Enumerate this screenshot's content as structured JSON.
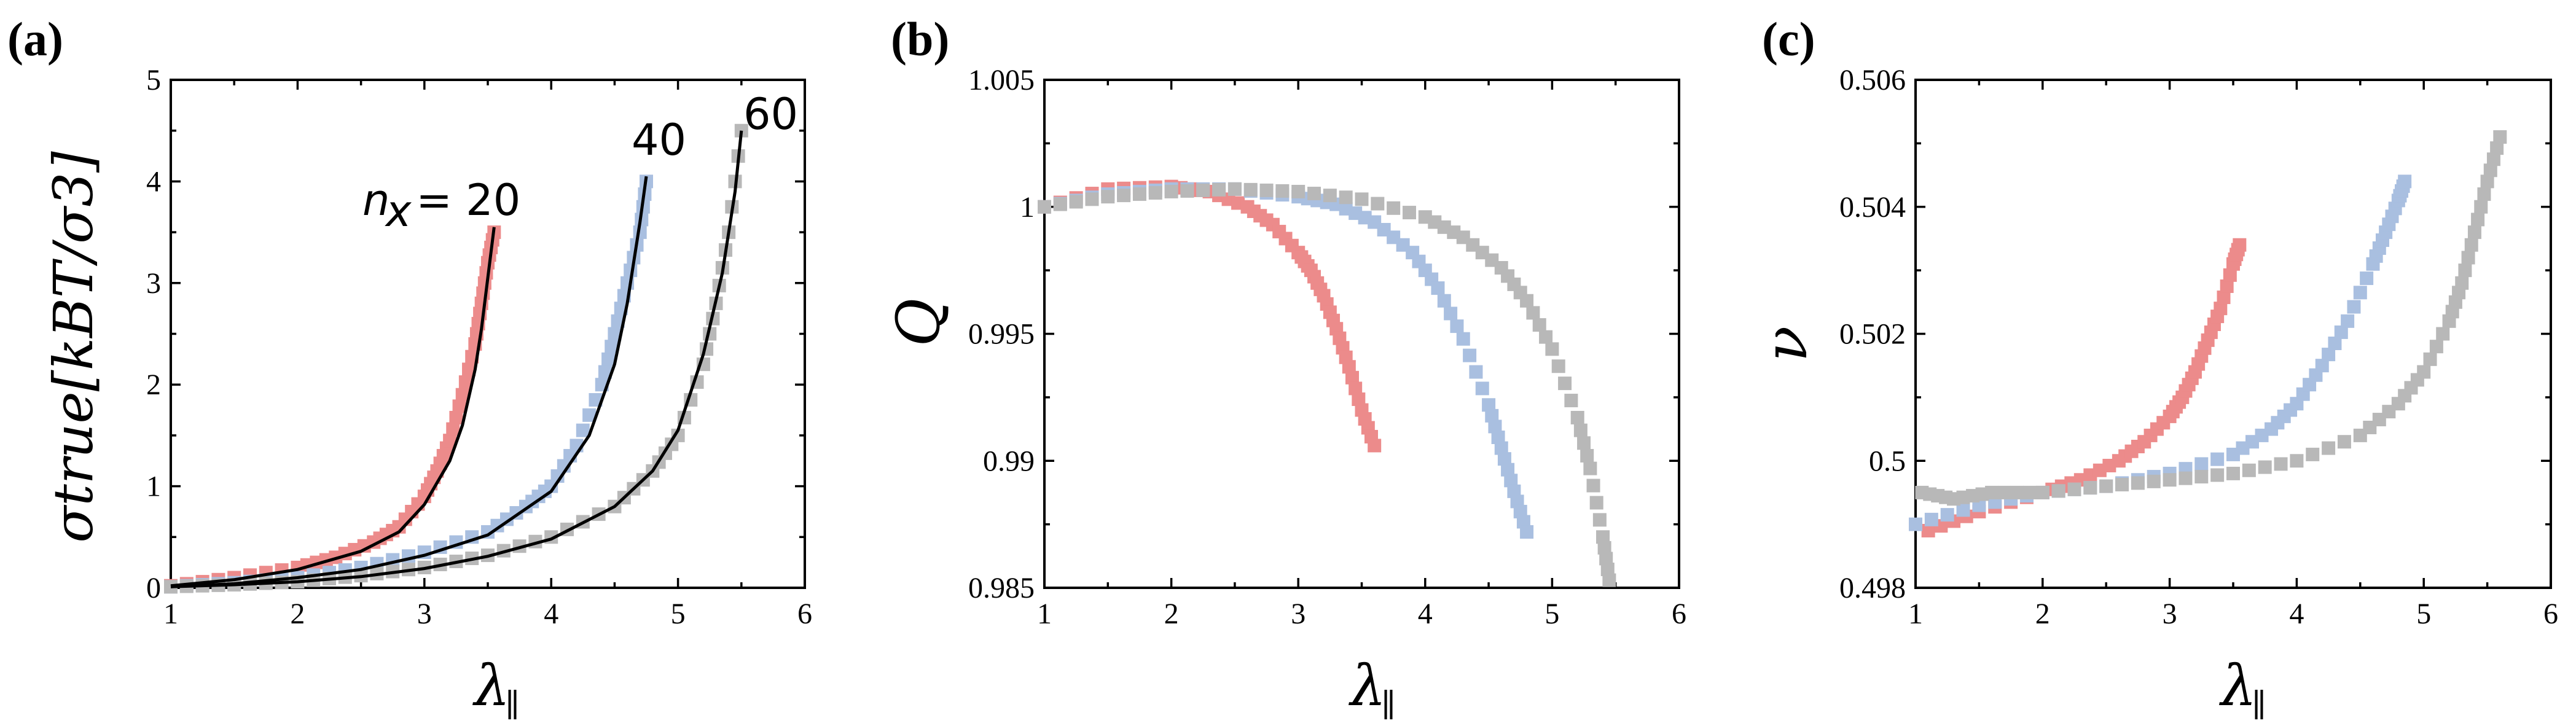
{
  "colors": {
    "red": "#ec8b8b",
    "blue": "#a9bfe0",
    "gray": "#b8b8b8",
    "fit": "#000000"
  },
  "chart_data": [
    {
      "panel": "(a)",
      "type": "scatter",
      "xlabel_main": "λ",
      "xlabel_sub": "∥",
      "ylabel": "σtrue[kBT/σ3]",
      "xlim": [
        1,
        6
      ],
      "ylim": [
        0,
        5
      ],
      "xticks": [
        "1",
        "2",
        "3",
        "4",
        "5",
        "6"
      ],
      "yticks": [
        "0",
        "1",
        "2",
        "3",
        "4",
        "5"
      ],
      "annotations": [
        "n",
        "x",
        " = 20",
        "40",
        "60"
      ],
      "series": [
        {
          "name": "20",
          "color": "red",
          "x": [
            1.0,
            1.5,
            2.0,
            2.3,
            2.6,
            2.8,
            3.0,
            3.1,
            3.2,
            3.3,
            3.4,
            3.45,
            3.5,
            3.55
          ],
          "y": [
            0.02,
            0.1,
            0.2,
            0.3,
            0.45,
            0.6,
            0.9,
            1.15,
            1.45,
            1.9,
            2.4,
            2.8,
            3.2,
            3.5
          ]
        },
        {
          "name": "40",
          "color": "blue",
          "x": [
            1.0,
            1.5,
            2.0,
            2.5,
            3.0,
            3.5,
            3.8,
            4.0,
            4.2,
            4.4,
            4.5,
            4.6,
            4.7,
            4.75
          ],
          "y": [
            0.01,
            0.05,
            0.1,
            0.2,
            0.35,
            0.55,
            0.8,
            1.0,
            1.4,
            2.0,
            2.5,
            3.0,
            3.5,
            4.0
          ]
        },
        {
          "name": "60",
          "color": "gray",
          "x": [
            1.0,
            1.5,
            2.0,
            2.5,
            3.0,
            3.5,
            4.0,
            4.5,
            4.8,
            5.0,
            5.2,
            5.3,
            5.4,
            5.5
          ],
          "y": [
            0.01,
            0.03,
            0.06,
            0.12,
            0.2,
            0.32,
            0.5,
            0.8,
            1.15,
            1.5,
            2.2,
            2.8,
            3.5,
            4.5
          ]
        }
      ],
      "fits": [
        {
          "x": [
            1.0,
            1.5,
            2.0,
            2.5,
            2.8,
            3.0,
            3.2,
            3.3,
            3.4,
            3.45,
            3.5,
            3.55
          ],
          "y": [
            0.02,
            0.08,
            0.18,
            0.36,
            0.55,
            0.82,
            1.25,
            1.6,
            2.15,
            2.55,
            3.05,
            3.55
          ]
        },
        {
          "x": [
            1.0,
            1.5,
            2.0,
            2.5,
            3.0,
            3.5,
            4.0,
            4.3,
            4.5,
            4.6,
            4.7,
            4.75
          ],
          "y": [
            0.01,
            0.04,
            0.1,
            0.18,
            0.32,
            0.52,
            0.95,
            1.5,
            2.2,
            2.8,
            3.6,
            4.05
          ]
        },
        {
          "x": [
            1.0,
            1.5,
            2.0,
            2.5,
            3.0,
            3.5,
            4.0,
            4.5,
            4.8,
            5.0,
            5.2,
            5.35,
            5.45,
            5.5
          ],
          "y": [
            0.01,
            0.03,
            0.06,
            0.11,
            0.19,
            0.31,
            0.48,
            0.8,
            1.15,
            1.55,
            2.3,
            3.1,
            3.9,
            4.5
          ]
        }
      ]
    },
    {
      "panel": "(b)",
      "type": "scatter",
      "xlabel_main": "λ",
      "xlabel_sub": "∥",
      "ylabel": "Q",
      "xlim": [
        1,
        6
      ],
      "ylim": [
        0.985,
        1.005
      ],
      "xticks": [
        "1",
        "2",
        "3",
        "4",
        "5",
        "6"
      ],
      "yticks": [
        "0.985",
        "0.99",
        "0.995",
        "1",
        "1.005"
      ],
      "series": [
        {
          "name": "20",
          "color": "red",
          "x": [
            1.0,
            1.5,
            2.0,
            2.3,
            2.6,
            2.8,
            3.0,
            3.1,
            3.2,
            3.3,
            3.4,
            3.5,
            3.6
          ],
          "y": [
            1.0,
            1.0007,
            1.0008,
            1.0006,
            1.0,
            0.9993,
            0.9982,
            0.9975,
            0.9965,
            0.9952,
            0.9937,
            0.992,
            0.9906
          ]
        },
        {
          "name": "40",
          "color": "blue",
          "x": [
            1.0,
            1.5,
            2.0,
            2.5,
            3.0,
            3.3,
            3.6,
            3.9,
            4.1,
            4.3,
            4.5,
            4.6,
            4.7,
            4.8
          ],
          "y": [
            1.0,
            1.0005,
            1.0007,
            1.0007,
            1.0004,
            1.0001,
            0.9994,
            0.9982,
            0.9968,
            0.9948,
            0.9922,
            0.9905,
            0.9888,
            0.9872
          ]
        },
        {
          "name": "60",
          "color": "gray",
          "x": [
            1.0,
            1.5,
            2.0,
            2.5,
            3.0,
            3.5,
            4.0,
            4.3,
            4.6,
            4.8,
            5.0,
            5.2,
            5.3,
            5.4,
            5.45
          ],
          "y": [
            1.0,
            1.0004,
            1.0006,
            1.0007,
            1.0006,
            1.0003,
            0.9996,
            0.9988,
            0.9976,
            0.9963,
            0.9944,
            0.9917,
            0.9897,
            0.987,
            0.9853
          ]
        }
      ]
    },
    {
      "panel": "(c)",
      "type": "scatter",
      "xlabel_main": "λ",
      "xlabel_sub": "∥",
      "ylabel": "ν",
      "xlim": [
        1,
        6
      ],
      "ylim": [
        0.498,
        0.506
      ],
      "xticks": [
        "1",
        "2",
        "3",
        "4",
        "5",
        "6"
      ],
      "yticks": [
        "0.498",
        "0.5",
        "0.502",
        "0.504",
        "0.506"
      ],
      "series": [
        {
          "name": "20",
          "color": "red",
          "x": [
            1.1,
            1.5,
            2.0,
            2.3,
            2.6,
            2.8,
            3.0,
            3.1,
            3.2,
            3.3,
            3.4,
            3.5,
            3.55
          ],
          "y": [
            0.4989,
            0.4992,
            0.4995,
            0.4997,
            0.5,
            0.5003,
            0.5007,
            0.501,
            0.5014,
            0.5019,
            0.5024,
            0.5031,
            0.5034
          ]
        },
        {
          "name": "40",
          "color": "blue",
          "x": [
            1.0,
            1.5,
            2.0,
            2.5,
            3.0,
            3.5,
            3.8,
            4.0,
            4.2,
            4.4,
            4.6,
            4.7,
            4.8,
            4.85
          ],
          "y": [
            0.499,
            0.4993,
            0.4995,
            0.4996,
            0.4998,
            0.5001,
            0.5005,
            0.5009,
            0.5015,
            0.5022,
            0.5031,
            0.5036,
            0.5041,
            0.5044
          ]
        },
        {
          "name": "60",
          "color": "gray",
          "x": [
            1.05,
            1.3,
            1.6,
            2.0,
            2.5,
            3.0,
            3.5,
            4.0,
            4.5,
            4.8,
            5.0,
            5.2,
            5.3,
            5.4,
            5.5,
            5.6
          ],
          "y": [
            0.4995,
            0.4994,
            0.4995,
            0.4995,
            0.4996,
            0.4997,
            0.4998,
            0.5,
            0.5004,
            0.5009,
            0.5014,
            0.5022,
            0.5028,
            0.5036,
            0.5044,
            0.5051
          ]
        }
      ]
    }
  ]
}
